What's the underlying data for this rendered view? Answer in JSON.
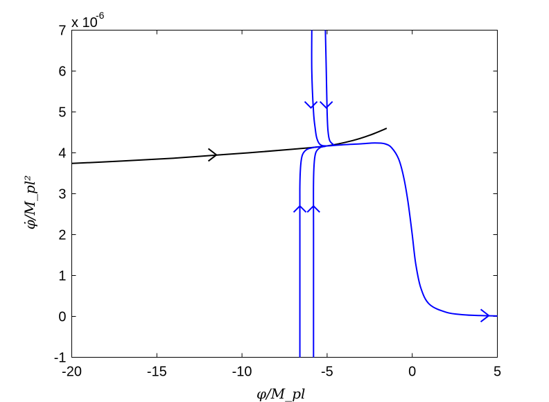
{
  "chart_data": {
    "type": "line",
    "title": "",
    "xlabel": "φ/M_pl",
    "ylabel": "φ̇/M_pl²",
    "xlim": [
      -20,
      5
    ],
    "ylim": [
      -1,
      7
    ],
    "y_scale_label": "x 10",
    "y_scale_exponent": "-6",
    "xticks": [
      "-20",
      "-15",
      "-10",
      "-5",
      "0",
      "5"
    ],
    "yticks": [
      "-1",
      "0",
      "1",
      "2",
      "3",
      "4",
      "5",
      "6",
      "7"
    ],
    "grid": false,
    "legend": "none",
    "series": [
      {
        "color": "#000000",
        "x": [
          -20,
          -17,
          -14,
          -11,
          -9,
          -7,
          -5,
          -3.5,
          -2.5,
          -1.5
        ],
        "y": [
          3.74,
          3.8,
          3.87,
          3.96,
          4.02,
          4.09,
          4.17,
          4.3,
          4.43,
          4.6
        ],
        "arrows": [
          {
            "x": -11.5,
            "y": 3.95,
            "direction": "right"
          }
        ]
      },
      {
        "color": "#0000ff",
        "x": [
          -5.9,
          -5.9,
          -5.8,
          -5.7,
          -5.6,
          -5.4,
          -5,
          -4,
          -3,
          -2.2,
          -1.6,
          -1.2,
          -0.8,
          -0.5,
          -0.25,
          0,
          0.2,
          0.5,
          1,
          2,
          3,
          4,
          5
        ],
        "y": [
          7,
          6.0,
          5.0,
          4.6,
          4.35,
          4.2,
          4.17,
          4.2,
          4.22,
          4.24,
          4.22,
          4.12,
          3.85,
          3.4,
          2.8,
          2.0,
          1.3,
          0.7,
          0.3,
          0.1,
          0.04,
          0.02,
          0.01
        ],
        "arrows": [
          {
            "x": -5.95,
            "y": 5.1,
            "direction": "down"
          },
          {
            "x": 4.5,
            "y": 0.02,
            "direction": "right"
          }
        ]
      },
      {
        "color": "#0000ff",
        "x": [
          -5.1,
          -5.05,
          -5.0,
          -4.95,
          -4.85,
          -4.6
        ],
        "y": [
          7,
          6.0,
          5.0,
          4.55,
          4.3,
          4.19
        ],
        "arrows": [
          {
            "x": -5.05,
            "y": 5.1,
            "direction": "down"
          }
        ]
      },
      {
        "color": "#0000ff",
        "x": [
          -6.6,
          -6.6,
          -6.6,
          -6.55,
          -6.45,
          -6.2,
          -5.8,
          -5.4
        ],
        "y": [
          -1,
          2.0,
          3.2,
          3.7,
          3.95,
          4.08,
          4.13,
          4.15
        ],
        "arrows": [
          {
            "x": -6.6,
            "y": 2.7,
            "direction": "up"
          }
        ]
      },
      {
        "color": "#0000ff",
        "x": [
          -5.8,
          -5.8,
          -5.8,
          -5.75,
          -5.65,
          -5.4,
          -5.1
        ],
        "y": [
          -1,
          2.0,
          3.3,
          3.8,
          4.02,
          4.13,
          4.16
        ],
        "arrows": [
          {
            "x": -5.8,
            "y": 2.7,
            "direction": "up"
          }
        ]
      }
    ]
  }
}
